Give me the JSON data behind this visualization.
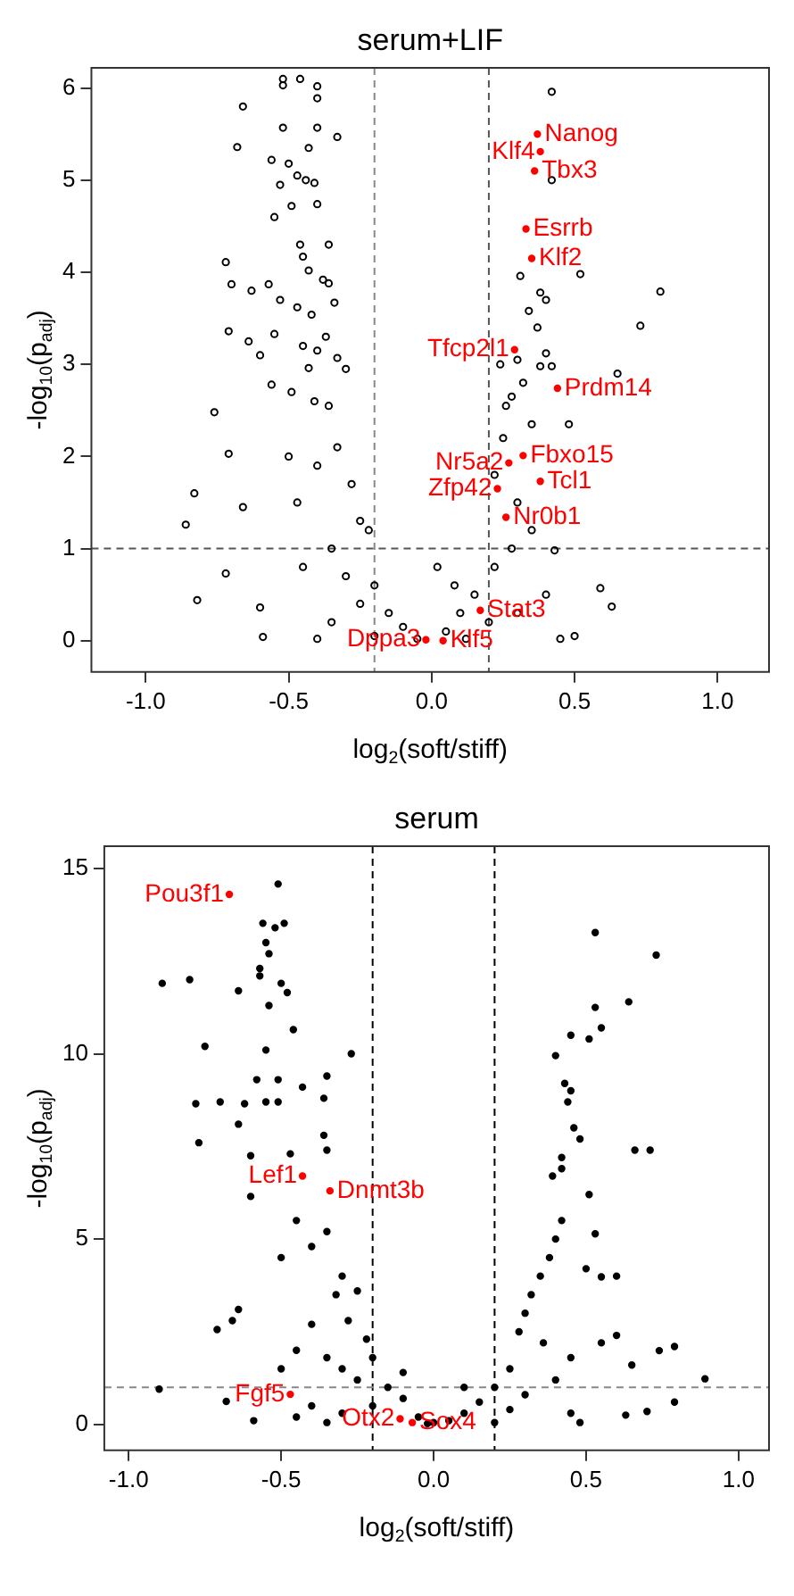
{
  "chart_data": [
    {
      "type": "scatter",
      "title": "serum+LIF",
      "xlabel": "log$_{2}$(soft/stiff)",
      "ylabel": "-log$_{10}$(p$_{adj}$)",
      "marker": "circle",
      "legend": false,
      "grid": false,
      "xlim": [
        -1.19,
        1.18
      ],
      "ylim": [
        -0.34,
        6.22
      ],
      "xticks": [
        {
          "value": -1,
          "label": "-1.0"
        },
        {
          "value": -0.5,
          "label": "-0.5"
        },
        {
          "value": 0,
          "label": "0.0"
        },
        {
          "value": 0.5,
          "label": "0.5"
        },
        {
          "value": 1,
          "label": "1.0"
        }
      ],
      "yticks": [
        0,
        1,
        2,
        3,
        4,
        5,
        6
      ],
      "ref_lines": [
        {
          "axis": "x",
          "value": -0.2,
          "color": "#888888",
          "line_style": "dashed"
        },
        {
          "axis": "x",
          "value": 0.2,
          "color": "#555555",
          "line_style": "dashed"
        },
        {
          "axis": "y",
          "value": 1,
          "color": "#555555",
          "line_style": "dashed"
        }
      ],
      "series": [
        {
          "color": "#000000",
          "x": [
            -0.52,
            -0.46,
            -0.4,
            -0.52,
            -0.66,
            -0.52,
            -0.68,
            -0.33,
            -0.4,
            -0.4,
            -0.43,
            0.42,
            0.42,
            -0.56,
            -0.5,
            -0.47,
            -0.44,
            -0.41,
            -0.53,
            -0.49,
            -0.4,
            -0.55,
            -0.46,
            -0.36,
            -0.45,
            -0.72,
            -0.7,
            -0.63,
            -0.43,
            -0.38,
            -0.36,
            -0.57,
            -0.53,
            -0.47,
            -0.34,
            -0.42,
            -0.71,
            -0.64,
            -0.6,
            -0.55,
            -0.45,
            -0.4,
            -0.37,
            -0.33,
            -0.43,
            -0.56,
            -0.49,
            -0.41,
            -0.36,
            -0.3,
            0.8,
            0.73,
            0.52,
            0.31,
            0.38,
            0.4,
            0.34,
            0.37,
            0.24,
            0.3,
            0.38,
            0.42,
            0.4,
            0.65,
            0.32,
            0.28,
            0.26,
            0.35,
            0.48,
            -0.76,
            -0.71,
            -0.83,
            -0.86,
            -0.82,
            -0.72,
            -0.66,
            -0.6,
            -0.59,
            -0.5,
            -0.47,
            -0.4,
            -0.33,
            -0.28,
            -0.25,
            -0.22,
            -0.35,
            -0.45,
            -0.3,
            -0.2,
            -0.25,
            -0.15,
            -0.1,
            -0.35,
            -0.4,
            -0.2,
            -0.05,
            0.63,
            0.59,
            0.43,
            0.5,
            0.25,
            0.22,
            0.3,
            0.35,
            0.28,
            0.22,
            0.15,
            0.1,
            0.05,
            0.2,
            0.3,
            0.4,
            0.45,
            0.12,
            0.08,
            0.02
          ],
          "values": [
            6.1,
            6.1,
            6.02,
            6.03,
            5.8,
            5.57,
            5.36,
            5.47,
            5.57,
            5.89,
            5.35,
            5.96,
            5.0,
            5.22,
            5.18,
            5.05,
            5.0,
            4.97,
            4.95,
            4.72,
            4.74,
            4.6,
            4.3,
            4.3,
            4.17,
            4.11,
            3.87,
            3.8,
            4.02,
            3.92,
            3.88,
            3.87,
            3.7,
            3.62,
            3.67,
            3.54,
            3.36,
            3.25,
            3.1,
            3.33,
            3.2,
            3.15,
            3.3,
            3.07,
            2.96,
            2.78,
            2.7,
            2.6,
            2.55,
            2.95,
            3.79,
            3.42,
            3.98,
            3.96,
            3.78,
            3.7,
            3.58,
            3.4,
            3.0,
            3.05,
            2.98,
            2.98,
            3.12,
            2.9,
            2.8,
            2.65,
            2.55,
            2.35,
            2.35,
            2.48,
            2.03,
            1.6,
            1.26,
            0.44,
            0.73,
            1.45,
            0.36,
            0.04,
            2.0,
            1.5,
            1.9,
            2.1,
            1.7,
            1.3,
            1.2,
            1.0,
            0.8,
            0.7,
            0.6,
            0.4,
            0.3,
            0.15,
            0.2,
            0.02,
            0.05,
            0.02,
            0.37,
            0.57,
            0.98,
            0.05,
            2.2,
            1.8,
            1.5,
            1.2,
            1.0,
            0.8,
            0.5,
            0.3,
            0.1,
            0.2,
            0.3,
            0.5,
            0.02,
            0.02,
            0.6,
            0.8
          ]
        },
        {
          "color": "#ff0000",
          "x": [
            0.37,
            0.38,
            0.36,
            0.33,
            0.35,
            0.29,
            0.44,
            0.32,
            0.27,
            0.38,
            0.23,
            0.26,
            0.17,
            0.04,
            -0.02
          ],
          "values": [
            5.5,
            5.31,
            5.1,
            4.47,
            4.15,
            3.16,
            2.74,
            2.01,
            1.93,
            1.73,
            1.65,
            1.34,
            0.33,
            0,
            0.01
          ]
        }
      ],
      "annotations": [
        {
          "text": "Nanog",
          "x": 0.37,
          "y": 5.5
        },
        {
          "text": "Klf4",
          "x": 0.38,
          "y": 5.31
        },
        {
          "text": "Tbx3",
          "x": 0.36,
          "y": 5.1
        },
        {
          "text": "Esrrb",
          "x": 0.33,
          "y": 4.47
        },
        {
          "text": "Klf2",
          "x": 0.35,
          "y": 4.15
        },
        {
          "text": "Tfcp2l1",
          "x": 0.29,
          "y": 3.16
        },
        {
          "text": "Prdm14",
          "x": 0.44,
          "y": 2.74
        },
        {
          "text": "Fbxo15",
          "x": 0.32,
          "y": 2.01
        },
        {
          "text": "Nr5a2",
          "x": 0.27,
          "y": 1.93
        },
        {
          "text": "Tcl1",
          "x": 0.38,
          "y": 1.73
        },
        {
          "text": "Zfp42",
          "x": 0.23,
          "y": 1.65
        },
        {
          "text": "Nr0b1",
          "x": 0.26,
          "y": 1.34
        },
        {
          "text": "Stat3",
          "x": 0.17,
          "y": 0.33
        },
        {
          "text": "Klf5",
          "x": 0.04,
          "y": 0
        },
        {
          "text": "Dppa3",
          "x": -0.02,
          "y": 0.01
        }
      ]
    },
    {
      "type": "scatter",
      "title": "serum",
      "xlabel": "log$_{2}$(soft/stiff)",
      "ylabel": "-log$_{10}$(p$_{adj}$)",
      "marker": "circle",
      "legend": false,
      "grid": false,
      "xlim": [
        -1.08,
        1.1
      ],
      "ylim": [
        -0.7,
        15.6
      ],
      "xticks": [
        {
          "value": -1,
          "label": "-1.0"
        },
        {
          "value": -0.5,
          "label": "-0.5"
        },
        {
          "value": 0,
          "label": "0.0"
        },
        {
          "value": 0.5,
          "label": "0.5"
        },
        {
          "value": 1,
          "label": "1.0"
        }
      ],
      "yticks": [
        0,
        5,
        10,
        15
      ],
      "ref_lines": [
        {
          "axis": "x",
          "value": -0.2,
          "color": "#000000",
          "line_style": "dashed"
        },
        {
          "axis": "x",
          "value": 0.2,
          "color": "#000000",
          "line_style": "dashed"
        },
        {
          "axis": "y",
          "value": 1,
          "color": "#888888",
          "line_style": "dashed"
        }
      ],
      "series": [
        {
          "color": "#000000",
          "x": [
            -0.51,
            -0.56,
            -0.49,
            -0.52,
            -0.55,
            -0.54,
            -0.57,
            -0.57,
            -0.89,
            -0.8,
            -0.64,
            -0.5,
            -0.48,
            -0.54,
            -0.46,
            -0.55,
            -0.27,
            -0.75,
            -0.58,
            -0.51,
            -0.43,
            -0.35,
            -0.36,
            -0.78,
            -0.7,
            -0.62,
            -0.55,
            -0.51,
            -0.64,
            -0.36,
            -0.77,
            -0.35,
            -0.6,
            -0.47,
            0.53,
            0.73,
            0.64,
            0.53,
            0.55,
            0.45,
            0.51,
            0.4,
            0.43,
            0.45,
            0.44,
            0.46,
            0.48,
            0.66,
            0.71,
            0.42,
            0.42,
            0.39,
            -0.6,
            0.51,
            0.53,
            0.55,
            0.6,
            0.5,
            -0.71,
            -0.64,
            -0.66,
            0.74,
            0.79,
            0.89,
            0.79,
            0.7,
            0.63,
            -0.9,
            -0.68,
            -0.59,
            0.65,
            0.6,
            0.55,
            -0.5,
            -0.45,
            -0.4,
            -0.35,
            -0.3,
            -0.32,
            -0.25,
            -0.28,
            -0.22,
            -0.4,
            -0.45,
            -0.5,
            -0.35,
            -0.3,
            -0.2,
            -0.25,
            -0.15,
            -0.1,
            -0.2,
            -0.3,
            -0.4,
            -0.45,
            -0.35,
            -0.05,
            0.0,
            0.05,
            0.1,
            0.15,
            0.2,
            0.25,
            0.28,
            0.3,
            0.32,
            0.35,
            0.38,
            0.4,
            0.42,
            0.36,
            0.45,
            0.4,
            0.3,
            0.25,
            0.45,
            0.48,
            0.2,
            -0.1,
            0.1,
            -0.02
          ],
          "values": [
            14.58,
            13.52,
            13.52,
            13.4,
            13.0,
            12.7,
            12.3,
            12.1,
            11.9,
            12.0,
            11.7,
            11.9,
            11.65,
            11.3,
            10.65,
            10.1,
            10.0,
            10.2,
            9.3,
            9.3,
            9.1,
            9.4,
            8.8,
            8.65,
            8.7,
            8.65,
            8.7,
            8.7,
            8.1,
            7.8,
            7.6,
            7.4,
            7.25,
            7.3,
            13.27,
            12.66,
            11.4,
            11.25,
            10.7,
            10.5,
            10.4,
            9.95,
            9.2,
            9.0,
            8.7,
            8.0,
            7.7,
            7.4,
            7.4,
            7.2,
            6.9,
            6.7,
            6.15,
            6.2,
            5.14,
            3.98,
            4.0,
            4.2,
            2.56,
            3.1,
            2.8,
            1.99,
            2.1,
            1.23,
            0.6,
            0.35,
            0.25,
            0.95,
            0.62,
            0.1,
            1.6,
            2.4,
            2.2,
            4.5,
            5.5,
            4.8,
            5.2,
            4.0,
            3.5,
            3.6,
            2.8,
            2.3,
            2.7,
            2.0,
            1.5,
            1.8,
            1.5,
            1.8,
            1.2,
            1.0,
            0.7,
            0.5,
            0.3,
            0.5,
            0.2,
            0.05,
            0.2,
            0.05,
            0.1,
            0.3,
            0.6,
            1.0,
            1.5,
            2.5,
            3.0,
            3.5,
            4.0,
            4.5,
            5.0,
            5.5,
            2.2,
            1.8,
            1.2,
            0.8,
            0.4,
            0.3,
            0.05,
            0.05,
            1.4,
            1.0,
            0.02
          ]
        },
        {
          "color": "#ff0000",
          "x": [
            -0.67,
            -0.43,
            -0.34,
            -0.47,
            -0.11,
            -0.07
          ],
          "values": [
            14.3,
            6.7,
            6.3,
            0.81,
            0.15,
            0.05
          ]
        }
      ],
      "annotations": [
        {
          "text": "Pou3f1",
          "x": -0.67,
          "y": 14.3
        },
        {
          "text": "Lef1",
          "x": -0.43,
          "y": 6.7
        },
        {
          "text": "Dnmt3b",
          "x": -0.34,
          "y": 6.3
        },
        {
          "text": "Fgf5",
          "x": -0.47,
          "y": 0.81
        },
        {
          "text": "Otx2",
          "x": -0.11,
          "y": 0.15
        },
        {
          "text": "Sox4",
          "x": -0.07,
          "y": 0.05
        }
      ]
    }
  ]
}
